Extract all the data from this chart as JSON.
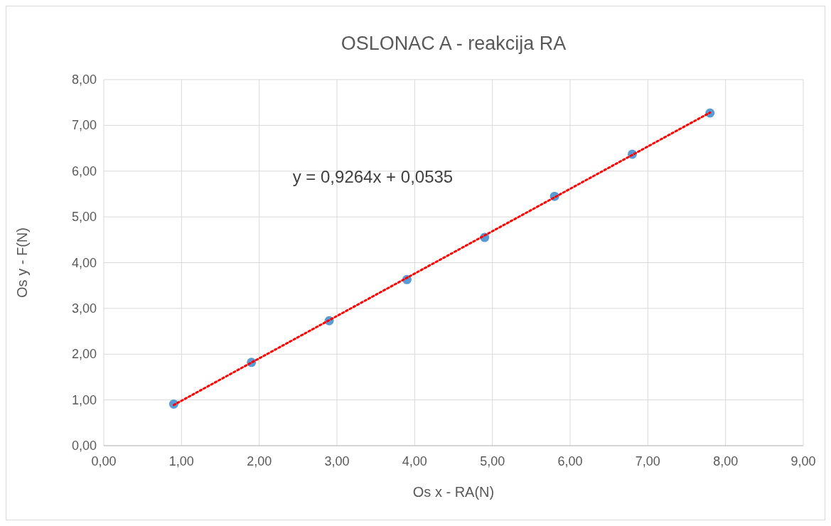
{
  "chart_data": {
    "type": "scatter",
    "title": "OSLONAC A - reakcija RA",
    "xlabel": "Os x - RA(N)",
    "ylabel": "Os y - F(N)",
    "annotations": [
      "y = 0,9264x + 0,0535"
    ],
    "series": [
      {
        "color": "#5b9bd5",
        "marker": "circle",
        "x": [
          0.9,
          1.9,
          2.9,
          3.9,
          4.9,
          5.8,
          6.8,
          7.8
        ],
        "values": [
          0.91,
          1.82,
          2.73,
          3.63,
          4.55,
          5.45,
          6.37,
          7.27
        ]
      },
      {
        "type": "line",
        "color": "#ff0000",
        "line_style": "dotted",
        "x": [
          0.9,
          7.8
        ],
        "values": [
          0.89,
          7.28
        ]
      }
    ],
    "xlim": [
      0,
      9
    ],
    "ylim": [
      0,
      8
    ],
    "xticks": [
      {
        "value": 0,
        "label": "0,00"
      },
      {
        "value": 1,
        "label": "1,00"
      },
      {
        "value": 2,
        "label": "2,00"
      },
      {
        "value": 3,
        "label": "3,00"
      },
      {
        "value": 4,
        "label": "4,00"
      },
      {
        "value": 5,
        "label": "5,00"
      },
      {
        "value": 6,
        "label": "6,00"
      },
      {
        "value": 7,
        "label": "7,00"
      },
      {
        "value": 8,
        "label": "8,00"
      },
      {
        "value": 9,
        "label": "9,00"
      }
    ],
    "yticks": [
      {
        "value": 0,
        "label": "0,00"
      },
      {
        "value": 1,
        "label": "1,00"
      },
      {
        "value": 2,
        "label": "2,00"
      },
      {
        "value": 3,
        "label": "3,00"
      },
      {
        "value": 4,
        "label": "4,00"
      },
      {
        "value": 5,
        "label": "5,00"
      },
      {
        "value": 6,
        "label": "6,00"
      },
      {
        "value": 7,
        "label": "7,00"
      },
      {
        "value": 8,
        "label": "8,00"
      }
    ],
    "grid": true
  }
}
